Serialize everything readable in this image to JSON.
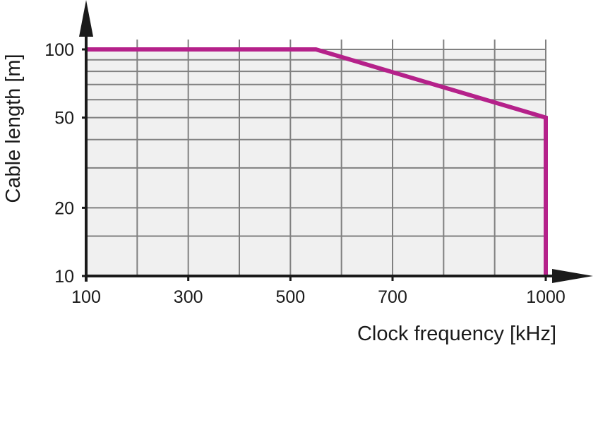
{
  "chart_data": {
    "type": "line",
    "xlabel": "Clock frequency [kHz]",
    "ylabel": "Cable length [m]",
    "xlim": [
      100,
      1000
    ],
    "ylim": [
      10,
      100
    ],
    "y_scale": "log",
    "x_ticks": [
      100,
      300,
      500,
      700,
      1000
    ],
    "x_tick_labels": [
      "100",
      "300",
      "500",
      "700",
      "1000"
    ],
    "y_ticks": [
      10,
      20,
      50,
      100
    ],
    "y_tick_labels": [
      "10",
      "20",
      "50",
      "100"
    ],
    "x_gridlines": [
      100,
      200,
      300,
      400,
      500,
      600,
      700,
      800,
      900,
      1000
    ],
    "y_gridlines": [
      15,
      20,
      30,
      40,
      50,
      60,
      70,
      80,
      90,
      100
    ],
    "grid": true,
    "series": [
      {
        "x": [
          100,
          550,
          1000,
          1000
        ],
        "y": [
          100,
          100,
          50,
          10
        ],
        "color": "#b5218a"
      }
    ],
    "colors": {
      "plot_background": "#f0f0f0",
      "grid": "#808080",
      "axis": "#1a1a1a"
    }
  }
}
